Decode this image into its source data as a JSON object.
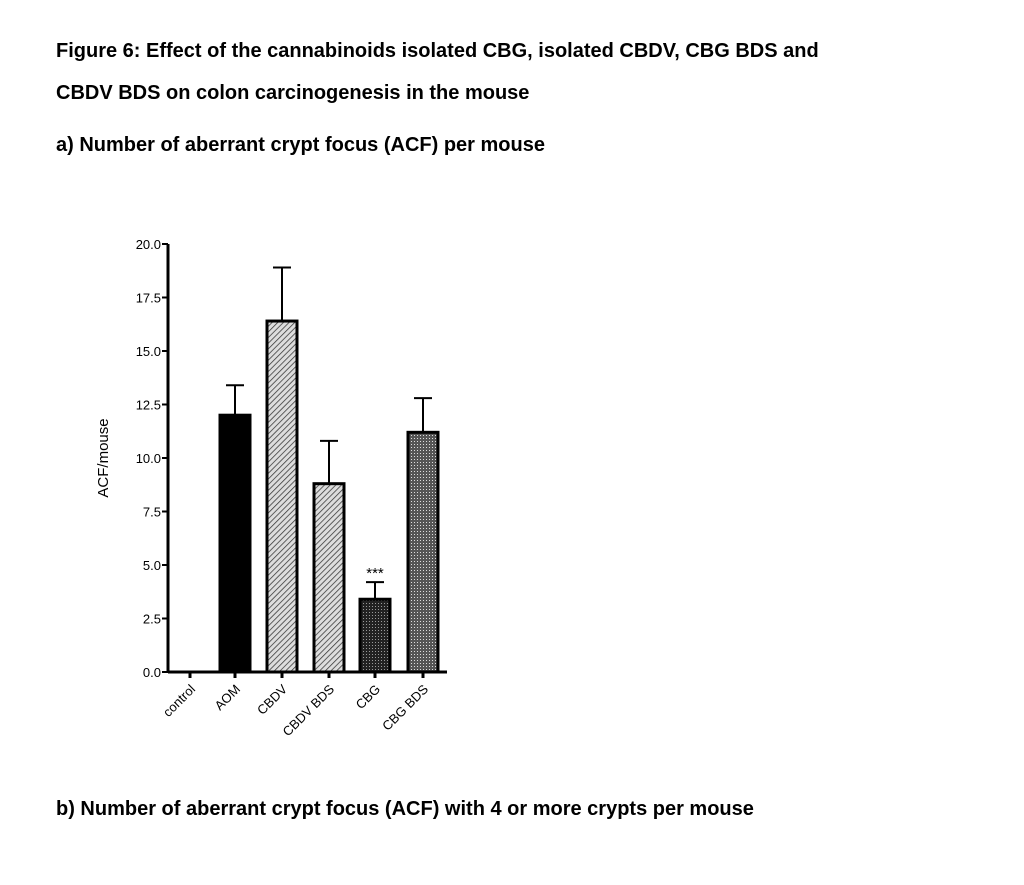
{
  "figure": {
    "title_line1": "Figure 6: Effect of the cannabinoids isolated CBG, isolated CBDV, CBG BDS and",
    "title_line2": "CBDV BDS on colon carcinogenesis in the mouse",
    "panel_a": "a) Number of aberrant crypt focus (ACF) per mouse",
    "panel_b": "b) Number of aberrant crypt focus (ACF) with 4 or more crypts per mouse"
  },
  "chart_data": {
    "type": "bar",
    "title": "",
    "xlabel": "",
    "ylabel": "ACF/mouse",
    "ylim": [
      0,
      20
    ],
    "yticks": [
      "0.0",
      "2.5",
      "5.0",
      "7.5",
      "10.0",
      "12.5",
      "15.0",
      "17.5",
      "20.0"
    ],
    "categories": [
      "control",
      "AOM",
      "CBDV",
      "CBDV BDS",
      "CBG",
      "CBG BDS"
    ],
    "values": [
      0,
      12.0,
      16.4,
      8.8,
      3.4,
      11.2
    ],
    "error_upper": [
      0,
      13.4,
      18.9,
      10.8,
      4.2,
      12.8
    ],
    "fills": [
      "none",
      "solid",
      "hatch",
      "hatch",
      "dots-dark",
      "dots"
    ],
    "annotations": [
      {
        "category": "CBG",
        "text": "***"
      }
    ],
    "grid": false
  }
}
